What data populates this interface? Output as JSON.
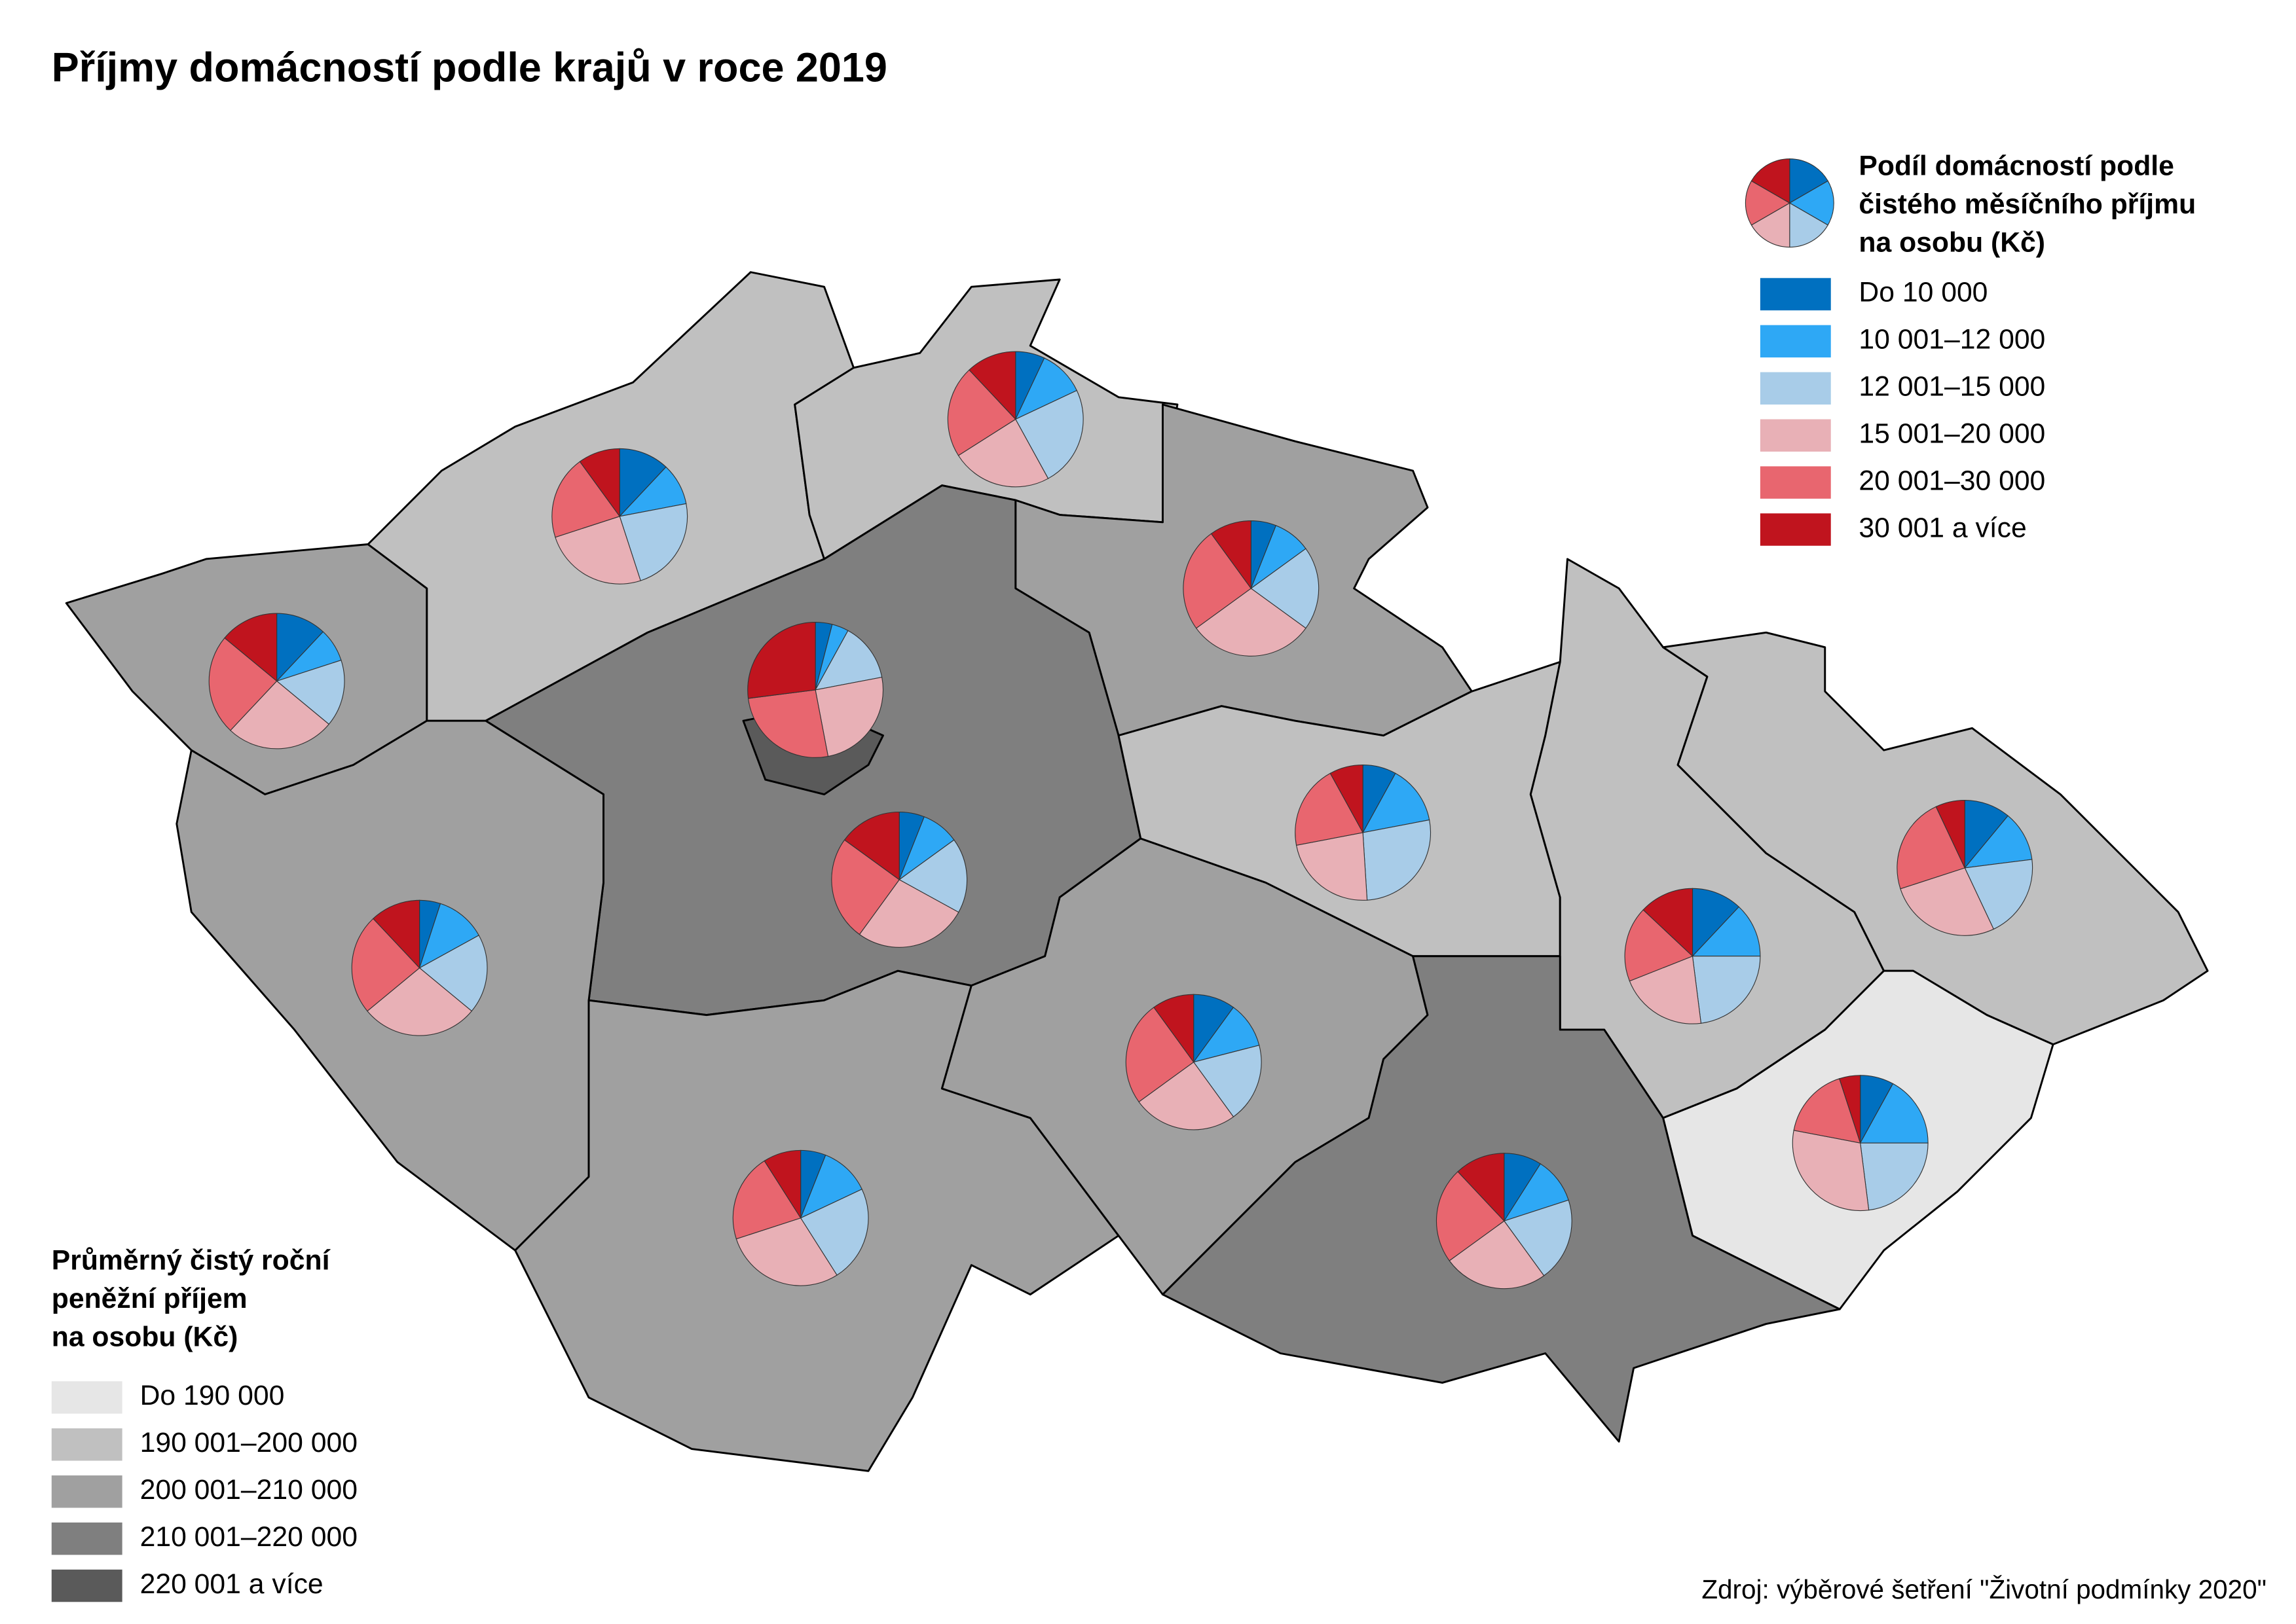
{
  "title": "Příjmy domácností podle krajů v roce 2019",
  "source": "Zdroj: výběrové šetření \"Životní podmínky 2020\"",
  "area_legend": {
    "title": [
      "Průměrný čistý roční",
      "peněžní příjem",
      "na osobu (Kč)"
    ],
    "items": [
      {
        "label": "Do 190 000",
        "color": "#e6e6e6"
      },
      {
        "label": "190 001–200 000",
        "color": "#c0c0c0"
      },
      {
        "label": "200 001–210 000",
        "color": "#a0a0a0"
      },
      {
        "label": "210 001–220 000",
        "color": "#7f7f7f"
      },
      {
        "label": "220 001 a více",
        "color": "#5a5a5a"
      }
    ]
  },
  "chart_data": {
    "type": "pie",
    "legend_title": [
      "Podíl domácností podle",
      "čistého měsíčního příjmu",
      "na osobu (Kč)"
    ],
    "region_colors": [
      "#a0a0a0",
      "#c0c0c0",
      "#c0c0c0",
      "#a0a0a0",
      "#7f7f7f",
      "#5a5a5a",
      "#a0a0a0",
      "#a0a0a0",
      "#a0a0a0",
      "#c0c0c0",
      "#c0c0c0",
      "#c0c0c0",
      "#e6e6e6",
      "#7f7f7f"
    ],
    "series": [
      {
        "name": "Do 10 000",
        "color": "#0070c0",
        "values": [
          12,
          12,
          7,
          6,
          6,
          4,
          5,
          6,
          10,
          8,
          12,
          11,
          8,
          9
        ]
      },
      {
        "name": "10 001–12 000",
        "color": "#2ea8f5",
        "values": [
          8,
          10,
          11,
          9,
          9,
          4,
          12,
          12,
          11,
          14,
          13,
          12,
          17,
          11
        ]
      },
      {
        "name": "12 001–15 000",
        "color": "#a8cce8",
        "values": [
          16,
          23,
          24,
          20,
          18,
          14,
          19,
          23,
          19,
          27,
          23,
          20,
          23,
          20
        ]
      },
      {
        "name": "15 001–20 000",
        "color": "#e8b0b6",
        "values": [
          26,
          25,
          24,
          30,
          27,
          25,
          28,
          29,
          25,
          23,
          21,
          27,
          30,
          25
        ]
      },
      {
        "name": "20 001–30 000",
        "color": "#e8666f",
        "values": [
          24,
          20,
          22,
          25,
          25,
          26,
          24,
          21,
          25,
          20,
          18,
          23,
          17,
          23
        ]
      },
      {
        "name": "30 001 a více",
        "color": "#c0141e",
        "values": [
          14,
          10,
          12,
          10,
          15,
          27,
          12,
          9,
          10,
          8,
          13,
          7,
          5,
          12
        ]
      }
    ]
  }
}
